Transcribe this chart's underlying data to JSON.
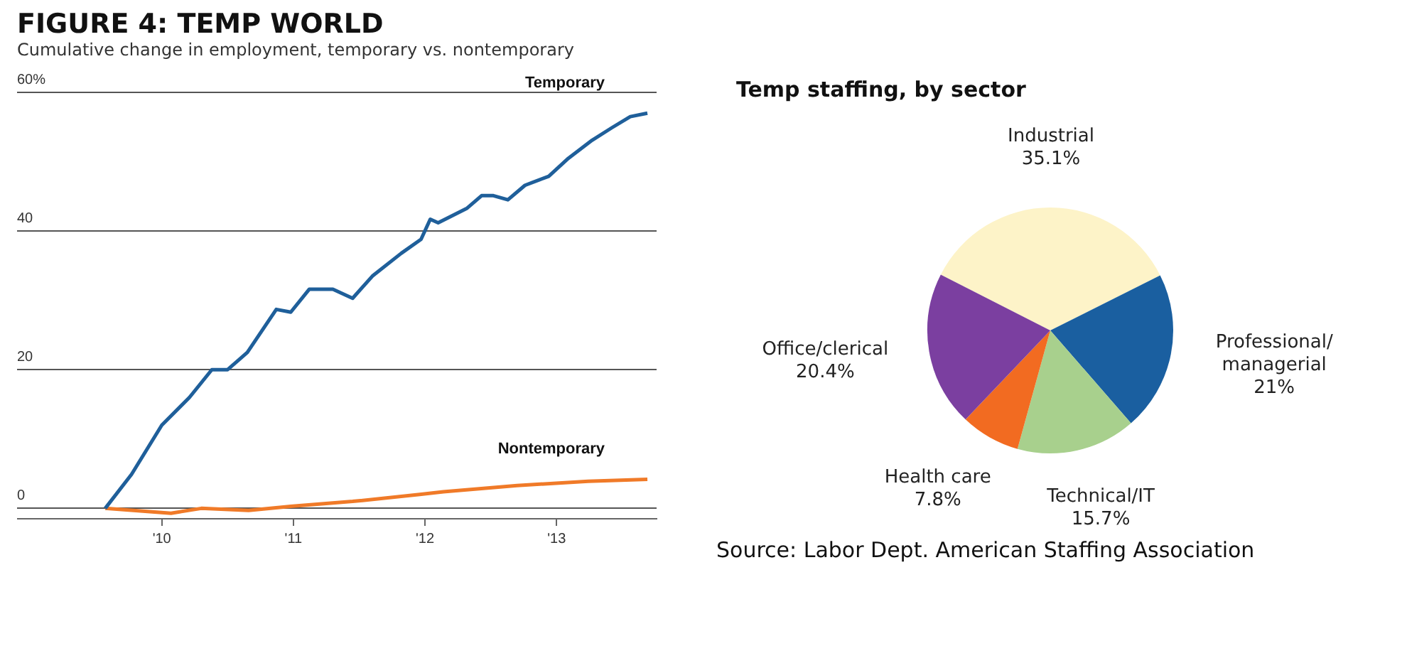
{
  "chart_data": [
    {
      "type": "line",
      "title": "FIGURE 4: TEMP WORLD",
      "subtitle": "Cumulative change in employment, temporary vs. nontemporary",
      "series": [
        {
          "name": "Temporary",
          "color": "#1f5f9a",
          "x": [
            2009.57,
            2009.77,
            2010.0,
            2010.21,
            2010.38,
            2010.5,
            2010.65,
            2010.87,
            2010.98,
            2011.12,
            2011.3,
            2011.45,
            2011.6,
            2011.82,
            2011.97,
            2012.04,
            2012.1,
            2012.32,
            2012.43,
            2012.52,
            2012.63,
            2012.76,
            2012.94,
            2013.09,
            2013.27,
            2013.42,
            2013.56,
            2013.69
          ],
          "values": [
            0,
            4.9,
            12,
            16,
            20,
            20,
            22.5,
            28.7,
            28.3,
            31.6,
            31.6,
            30.3,
            33.5,
            36.8,
            38.8,
            41.7,
            41.2,
            43.3,
            45.1,
            45.1,
            44.5,
            46.6,
            47.9,
            50.5,
            53.1,
            54.9,
            56.5,
            57
          ]
        },
        {
          "name": "Nontemporary",
          "color": "#f07a28",
          "x": [
            2009.57,
            2010.07,
            2010.3,
            2010.66,
            2010.98,
            2011.45,
            2011.96,
            2012.14,
            2012.7,
            2013.24,
            2013.69
          ],
          "values": [
            0,
            -0.7,
            0,
            -0.3,
            0.3,
            1,
            2,
            2.4,
            3.3,
            3.9,
            4.2
          ]
        }
      ],
      "xlim": [
        2008.9,
        2013.76
      ],
      "xticks": [
        {
          "value": 2010,
          "label": "'10"
        },
        {
          "value": 2011,
          "label": "'11"
        },
        {
          "value": 2012,
          "label": "'12"
        },
        {
          "value": 2013,
          "label": "'13"
        }
      ],
      "ylim": [
        -1.5,
        60
      ],
      "yticks": [
        0,
        20,
        40,
        {
          "value": 60,
          "label": "60%"
        }
      ],
      "grid": "y",
      "legend": false,
      "marker": "none",
      "line_style": "solid"
    },
    {
      "type": "pie",
      "title": "Temp staffing, by sector",
      "categories": [
        "Industrial",
        "Professional/managerial",
        "Technical/IT",
        "Health care",
        "Office/clerical"
      ],
      "values": [
        35.1,
        21,
        15.7,
        7.8,
        20.4
      ],
      "colors": [
        "#fdf3c8",
        "#1a5fa0",
        "#a8d08d",
        "#f26b21",
        "#7b3fa0"
      ],
      "value_labels": [
        "35.1%",
        "21%",
        "15.7%",
        "7.8%",
        "20.4%"
      ],
      "legend": false,
      "annotations": [
        "Source: Labor Dept. American Staffing Association"
      ]
    }
  ]
}
